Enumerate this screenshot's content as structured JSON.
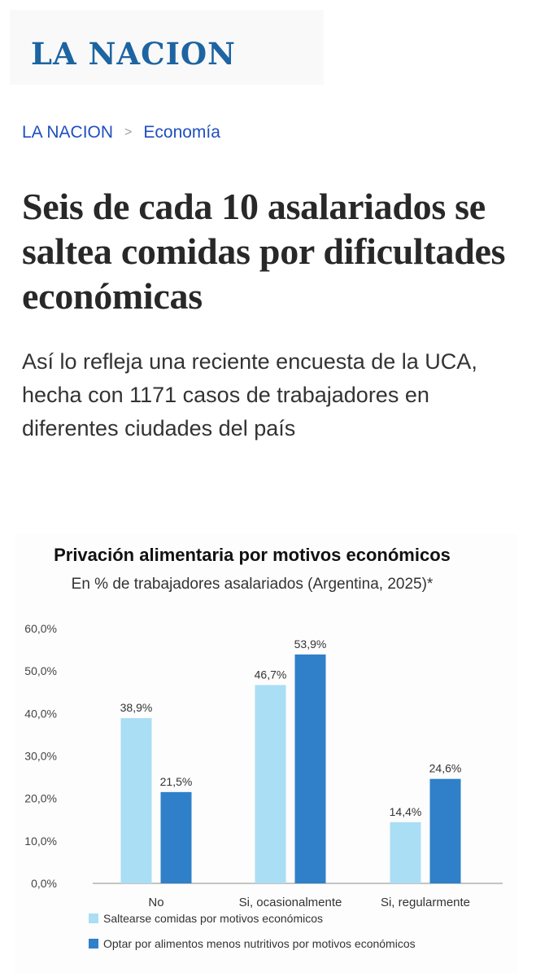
{
  "masthead": {
    "logo_text": "LA NACION"
  },
  "breadcrumb": {
    "home": "LA NACION",
    "separator": ">",
    "section": "Economía"
  },
  "article": {
    "headline": "Seis de cada 10 asalariados se saltea comidas por dificultades económicas",
    "lead": "Así lo refleja una reciente encuesta de la UCA, hecha con 1171 casos de trabajadores en diferentes ciudades del país"
  },
  "colors": {
    "brand": "#1d64a2",
    "link": "#1f4fbf",
    "series_light": "#a9def5",
    "series_dark": "#2f80c9"
  },
  "chart_data": {
    "type": "bar",
    "title": "Privación alimentaria por motivos económicos",
    "subtitle": "En % de trabajadores asalariados (Argentina, 2025)*",
    "categories": [
      "No",
      "Si, ocasionalmente",
      "Si, regularmente"
    ],
    "series": [
      {
        "name": "Saltearse comidas por motivos económicos",
        "values": [
          38.9,
          46.7,
          14.4
        ],
        "labels": [
          "38,9%",
          "46,7%",
          "14,4%"
        ],
        "color": "#a9def5"
      },
      {
        "name": "Optar por alimentos menos nutritivos por motivos económicos",
        "values": [
          21.5,
          53.9,
          24.6
        ],
        "labels": [
          "21,5%",
          "53,9%",
          "24,6%"
        ],
        "color": "#2f80c9"
      }
    ],
    "ylim": [
      0,
      60
    ],
    "yticks": [
      0,
      10,
      20,
      30,
      40,
      50,
      60
    ],
    "ytick_labels": [
      "0,0%",
      "10,0%",
      "20,0%",
      "30,0%",
      "40,0%",
      "50,0%",
      "60,0%"
    ],
    "grid": false,
    "legend": "bottom",
    "xlabel": "",
    "ylabel": ""
  }
}
